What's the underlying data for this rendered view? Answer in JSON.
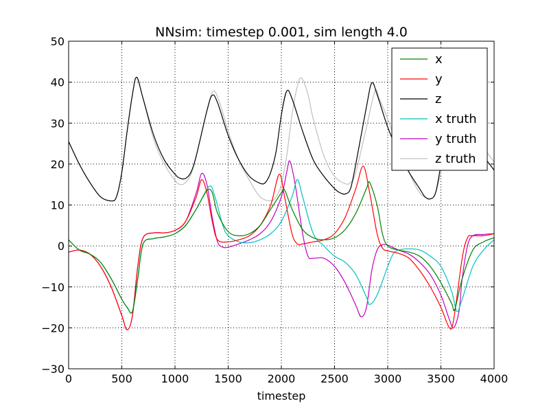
{
  "chart_data": {
    "type": "line",
    "title": "NNsim: timestep 0.001, sim length 4.0",
    "xlabel": "timestep",
    "ylabel": "",
    "xlim": [
      0,
      4000
    ],
    "ylim": [
      -30,
      50
    ],
    "xticks": [
      0,
      500,
      1000,
      1500,
      2000,
      2500,
      3000,
      3500,
      4000
    ],
    "yticks": [
      -30,
      -20,
      -10,
      0,
      10,
      20,
      30,
      40,
      50
    ],
    "grid": true,
    "legend_position": "top-right",
    "series": [
      {
        "name": "x",
        "color": "#008000",
        "points": [
          [
            0,
            1.5
          ],
          [
            100,
            -1
          ],
          [
            200,
            -2
          ],
          [
            300,
            -4
          ],
          [
            400,
            -8
          ],
          [
            500,
            -13
          ],
          [
            550,
            -15
          ],
          [
            600,
            -16
          ],
          [
            650,
            -8
          ],
          [
            700,
            0.5
          ],
          [
            800,
            1.8
          ],
          [
            900,
            2.2
          ],
          [
            1000,
            3
          ],
          [
            1100,
            5
          ],
          [
            1200,
            9
          ],
          [
            1300,
            13.5
          ],
          [
            1350,
            13
          ],
          [
            1400,
            8
          ],
          [
            1500,
            3.5
          ],
          [
            1600,
            2.5
          ],
          [
            1700,
            3
          ],
          [
            1800,
            5
          ],
          [
            1900,
            9
          ],
          [
            2000,
            13
          ],
          [
            2030,
            13.7
          ],
          [
            2100,
            9
          ],
          [
            2200,
            4
          ],
          [
            2300,
            2
          ],
          [
            2400,
            1.5
          ],
          [
            2500,
            2
          ],
          [
            2600,
            4
          ],
          [
            2700,
            8
          ],
          [
            2800,
            14
          ],
          [
            2830,
            15.5
          ],
          [
            2900,
            10
          ],
          [
            2950,
            3
          ],
          [
            3000,
            0
          ],
          [
            3100,
            -1
          ],
          [
            3200,
            -1.5
          ],
          [
            3300,
            -2.5
          ],
          [
            3400,
            -5
          ],
          [
            3500,
            -9
          ],
          [
            3600,
            -14
          ],
          [
            3630,
            -15.5
          ],
          [
            3700,
            -8
          ],
          [
            3800,
            -1
          ],
          [
            3900,
            1
          ],
          [
            4000,
            2
          ]
        ]
      },
      {
        "name": "y",
        "color": "#ff0000",
        "points": [
          [
            0,
            -1.5
          ],
          [
            100,
            -1
          ],
          [
            200,
            -2
          ],
          [
            300,
            -5
          ],
          [
            400,
            -10
          ],
          [
            500,
            -17
          ],
          [
            550,
            -20.5
          ],
          [
            600,
            -17
          ],
          [
            650,
            -5
          ],
          [
            700,
            2
          ],
          [
            800,
            3.2
          ],
          [
            900,
            3.2
          ],
          [
            1000,
            3.8
          ],
          [
            1100,
            6
          ],
          [
            1200,
            12
          ],
          [
            1250,
            16.2
          ],
          [
            1300,
            13
          ],
          [
            1350,
            6
          ],
          [
            1400,
            1.5
          ],
          [
            1500,
            1
          ],
          [
            1600,
            1.5
          ],
          [
            1700,
            2.5
          ],
          [
            1800,
            5
          ],
          [
            1900,
            10
          ],
          [
            1980,
            17.5
          ],
          [
            2030,
            12
          ],
          [
            2100,
            3
          ],
          [
            2150,
            0.5
          ],
          [
            2200,
            0.5
          ],
          [
            2300,
            1
          ],
          [
            2400,
            1.5
          ],
          [
            2500,
            3
          ],
          [
            2600,
            7
          ],
          [
            2700,
            14
          ],
          [
            2770,
            19.5
          ],
          [
            2830,
            13
          ],
          [
            2900,
            3
          ],
          [
            2950,
            -0.5
          ],
          [
            3000,
            -1.2
          ],
          [
            3100,
            -1.8
          ],
          [
            3200,
            -3
          ],
          [
            3300,
            -6
          ],
          [
            3400,
            -10
          ],
          [
            3500,
            -15
          ],
          [
            3580,
            -20
          ],
          [
            3620,
            -18
          ],
          [
            3700,
            -3
          ],
          [
            3750,
            2
          ],
          [
            3800,
            2.5
          ],
          [
            3900,
            2.5
          ],
          [
            4000,
            3
          ]
        ]
      },
      {
        "name": "z",
        "color": "#000000",
        "points": [
          [
            0,
            25.5
          ],
          [
            100,
            20
          ],
          [
            200,
            15.5
          ],
          [
            300,
            12
          ],
          [
            400,
            11
          ],
          [
            450,
            12
          ],
          [
            500,
            18
          ],
          [
            550,
            28
          ],
          [
            600,
            37
          ],
          [
            640,
            41.2
          ],
          [
            700,
            36
          ],
          [
            800,
            27
          ],
          [
            900,
            21
          ],
          [
            1000,
            17.5
          ],
          [
            1050,
            16.5
          ],
          [
            1100,
            16.5
          ],
          [
            1150,
            18
          ],
          [
            1200,
            22
          ],
          [
            1300,
            33
          ],
          [
            1350,
            36.8
          ],
          [
            1400,
            35
          ],
          [
            1500,
            27
          ],
          [
            1600,
            21
          ],
          [
            1700,
            17
          ],
          [
            1800,
            15.3
          ],
          [
            1850,
            15.5
          ],
          [
            1900,
            18
          ],
          [
            1950,
            23
          ],
          [
            2000,
            32
          ],
          [
            2050,
            37.8
          ],
          [
            2100,
            36
          ],
          [
            2200,
            28
          ],
          [
            2300,
            21
          ],
          [
            2400,
            17
          ],
          [
            2500,
            14
          ],
          [
            2550,
            13
          ],
          [
            2600,
            12.7
          ],
          [
            2650,
            14
          ],
          [
            2700,
            20
          ],
          [
            2800,
            34
          ],
          [
            2850,
            39.8
          ],
          [
            2900,
            37
          ],
          [
            3000,
            29
          ],
          [
            3100,
            23
          ],
          [
            3200,
            18
          ],
          [
            3300,
            14
          ],
          [
            3350,
            12
          ],
          [
            3400,
            11.5
          ],
          [
            3450,
            13
          ],
          [
            3500,
            20
          ],
          [
            3550,
            29
          ],
          [
            3600,
            34
          ],
          [
            3650,
            34
          ],
          [
            3700,
            31
          ],
          [
            3800,
            26
          ],
          [
            3900,
            22
          ],
          [
            4000,
            18.5
          ]
        ]
      },
      {
        "name": "x truth",
        "color": "#00bfbf",
        "points": [
          [
            0,
            1.5
          ],
          [
            100,
            -1
          ],
          [
            200,
            -2
          ],
          [
            300,
            -4
          ],
          [
            400,
            -8
          ],
          [
            500,
            -13
          ],
          [
            550,
            -15
          ],
          [
            600,
            -16
          ],
          [
            650,
            -8
          ],
          [
            700,
            0.5
          ],
          [
            800,
            1.8
          ],
          [
            900,
            2.2
          ],
          [
            1000,
            3
          ],
          [
            1100,
            5
          ],
          [
            1200,
            9
          ],
          [
            1320,
            14.5
          ],
          [
            1370,
            12.5
          ],
          [
            1450,
            5
          ],
          [
            1500,
            2.5
          ],
          [
            1600,
            1
          ],
          [
            1700,
            0.8
          ],
          [
            1800,
            1.5
          ],
          [
            1900,
            3
          ],
          [
            2000,
            6
          ],
          [
            2100,
            12
          ],
          [
            2150,
            16.2
          ],
          [
            2200,
            12
          ],
          [
            2300,
            3
          ],
          [
            2400,
            0
          ],
          [
            2500,
            -2.5
          ],
          [
            2600,
            -4
          ],
          [
            2700,
            -7
          ],
          [
            2800,
            -12.5
          ],
          [
            2830,
            -14.3
          ],
          [
            2900,
            -12
          ],
          [
            3000,
            -5
          ],
          [
            3050,
            -2
          ],
          [
            3100,
            -1
          ],
          [
            3200,
            -0.7
          ],
          [
            3300,
            -1
          ],
          [
            3400,
            -2.5
          ],
          [
            3500,
            -5
          ],
          [
            3600,
            -11
          ],
          [
            3650,
            -16
          ],
          [
            3700,
            -13
          ],
          [
            3800,
            -5
          ],
          [
            3900,
            -1
          ],
          [
            4000,
            1.5
          ]
        ]
      },
      {
        "name": "y truth",
        "color": "#bf00bf",
        "points": [
          [
            0,
            -1.5
          ],
          [
            100,
            -1
          ],
          [
            200,
            -2
          ],
          [
            300,
            -5
          ],
          [
            400,
            -10
          ],
          [
            500,
            -17
          ],
          [
            550,
            -20.5
          ],
          [
            600,
            -17
          ],
          [
            650,
            -5
          ],
          [
            700,
            2
          ],
          [
            800,
            3.2
          ],
          [
            900,
            3.2
          ],
          [
            1000,
            3.8
          ],
          [
            1100,
            6
          ],
          [
            1200,
            13
          ],
          [
            1250,
            17.7
          ],
          [
            1300,
            15
          ],
          [
            1350,
            7
          ],
          [
            1400,
            1
          ],
          [
            1450,
            -0.3
          ],
          [
            1500,
            -0.3
          ],
          [
            1600,
            0.5
          ],
          [
            1700,
            1.5
          ],
          [
            1800,
            3
          ],
          [
            1900,
            6
          ],
          [
            2000,
            12
          ],
          [
            2050,
            18
          ],
          [
            2080,
            20.7
          ],
          [
            2130,
            15
          ],
          [
            2200,
            3
          ],
          [
            2250,
            -2.5
          ],
          [
            2300,
            -3
          ],
          [
            2400,
            -3
          ],
          [
            2500,
            -5
          ],
          [
            2600,
            -9
          ],
          [
            2700,
            -14.5
          ],
          [
            2750,
            -17.3
          ],
          [
            2800,
            -15
          ],
          [
            2850,
            -6
          ],
          [
            2900,
            -1
          ],
          [
            2950,
            0.3
          ],
          [
            3000,
            0.2
          ],
          [
            3100,
            -1
          ],
          [
            3200,
            -2
          ],
          [
            3300,
            -4
          ],
          [
            3400,
            -7
          ],
          [
            3500,
            -12
          ],
          [
            3580,
            -18
          ],
          [
            3620,
            -20
          ],
          [
            3670,
            -16
          ],
          [
            3700,
            -8
          ],
          [
            3750,
            0
          ],
          [
            3800,
            2.5
          ],
          [
            3900,
            2.8
          ],
          [
            4000,
            3
          ]
        ]
      },
      {
        "name": "z truth",
        "color": "#bfbfbf",
        "points": [
          [
            0,
            25.5
          ],
          [
            100,
            20
          ],
          [
            200,
            15.5
          ],
          [
            300,
            12
          ],
          [
            400,
            11
          ],
          [
            450,
            12
          ],
          [
            500,
            18
          ],
          [
            550,
            28
          ],
          [
            600,
            37
          ],
          [
            640,
            41.2
          ],
          [
            700,
            36
          ],
          [
            800,
            26
          ],
          [
            900,
            20
          ],
          [
            1000,
            16
          ],
          [
            1050,
            15
          ],
          [
            1100,
            15.5
          ],
          [
            1150,
            17.5
          ],
          [
            1200,
            22
          ],
          [
            1300,
            33
          ],
          [
            1360,
            37.8
          ],
          [
            1420,
            35
          ],
          [
            1500,
            28
          ],
          [
            1600,
            21
          ],
          [
            1700,
            16
          ],
          [
            1800,
            12
          ],
          [
            1900,
            11
          ],
          [
            1950,
            12
          ],
          [
            2000,
            15
          ],
          [
            2050,
            22
          ],
          [
            2100,
            32
          ],
          [
            2150,
            39
          ],
          [
            2190,
            41
          ],
          [
            2250,
            37
          ],
          [
            2300,
            31
          ],
          [
            2400,
            22
          ],
          [
            2500,
            17
          ],
          [
            2600,
            15.2
          ],
          [
            2650,
            15.5
          ],
          [
            2700,
            18
          ],
          [
            2800,
            29
          ],
          [
            2880,
            37.8
          ],
          [
            2920,
            36
          ],
          [
            3000,
            31
          ],
          [
            3100,
            24
          ],
          [
            3200,
            18
          ],
          [
            3300,
            13
          ],
          [
            3400,
            11.5
          ],
          [
            3450,
            13
          ],
          [
            3500,
            18
          ],
          [
            3550,
            24
          ],
          [
            3600,
            30
          ],
          [
            3650,
            31
          ],
          [
            3700,
            30
          ],
          [
            3800,
            27
          ],
          [
            3900,
            24
          ],
          [
            4000,
            20.5
          ]
        ]
      }
    ]
  }
}
